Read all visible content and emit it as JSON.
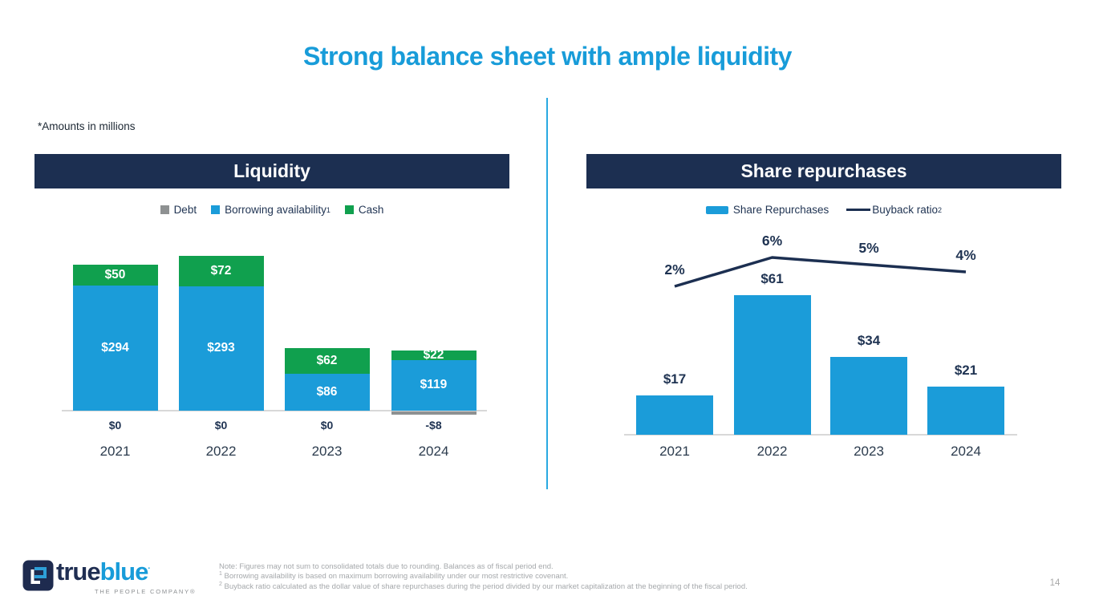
{
  "slide": {
    "title": "Strong balance sheet with ample liquidity",
    "amounts_note": "*Amounts in millions",
    "page_number": "14"
  },
  "logo": {
    "word_true": "true",
    "word_blue": "blue",
    "mark": "·",
    "tagline": "THE PEOPLE COMPANY®"
  },
  "footnotes": [
    {
      "sup": "",
      "text": "Note: Figures may not sum to consolidated totals due to rounding. Balances as of fiscal period end."
    },
    {
      "sup": "1",
      "text": " Borrowing availability is based on maximum borrowing availability under our most restrictive covenant."
    },
    {
      "sup": "2",
      "text": " Buyback ratio calculated as the dollar value of share repurchases during the period divided by our market capitalization at the beginning of the fiscal period."
    }
  ],
  "colors": {
    "title_blue": "#189CD9",
    "bar_blue": "#1B9CD9",
    "cash_green": "#10A04E",
    "header_navy": "#1C2F51",
    "label_navy": "#1F3352",
    "year_gray": "#2B3B4D",
    "debt_gray": "#8E9192",
    "axis_gray": "#D8D8D8",
    "divider_blue": "#29A9E1",
    "footnote_gray": "#A5A8AB"
  },
  "chart_data": [
    {
      "type": "bar",
      "variant": "stacked-column",
      "title": "Liquidity",
      "categories": [
        "2021",
        "2022",
        "2023",
        "2024"
      ],
      "series": [
        {
          "name": "Debt",
          "sup": "",
          "color": "#8E9192",
          "values": [
            0,
            0,
            0,
            -8
          ],
          "labels": [
            "$0",
            "$0",
            "$0",
            "-$8"
          ]
        },
        {
          "name": "Borrowing availability",
          "sup": "1",
          "color": "#1B9CD9",
          "values": [
            294,
            293,
            86,
            119
          ],
          "labels": [
            "$294",
            "$293",
            "$86",
            "$119"
          ]
        },
        {
          "name": "Cash",
          "sup": "",
          "color": "#10A04E",
          "values": [
            50,
            72,
            62,
            22
          ],
          "labels": [
            "$50",
            "$72",
            "$62",
            "$22"
          ]
        }
      ],
      "legend_position": "top",
      "grid": false
    },
    {
      "type": "bar",
      "variant": "column-with-line",
      "title": "Share repurchases",
      "categories": [
        "2021",
        "2022",
        "2023",
        "2024"
      ],
      "bar_series": {
        "name": "Share Repurchases",
        "sup": "",
        "color": "#1B9CD9",
        "values": [
          17,
          61,
          34,
          21
        ],
        "labels": [
          "$17",
          "$61",
          "$34",
          "$21"
        ]
      },
      "line_series": {
        "name": "Buyback ratio",
        "sup": "2",
        "color": "#1C2F51",
        "values": [
          2,
          6,
          5,
          4
        ],
        "labels": [
          "2%",
          "6%",
          "5%",
          "4%"
        ]
      },
      "legend_position": "top",
      "grid": false
    }
  ]
}
